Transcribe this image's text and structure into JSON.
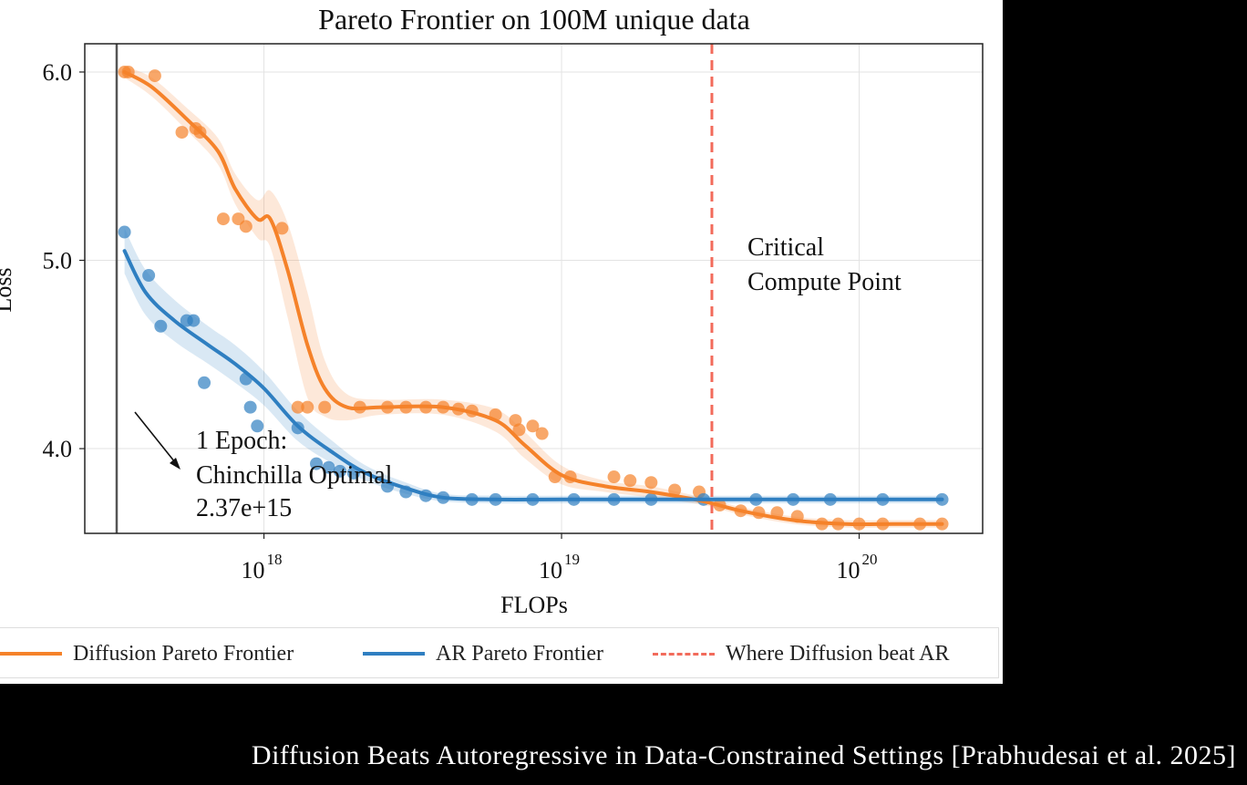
{
  "caption": "Diffusion Beats Autoregressive in Data-Constrained Settings [Prabhudesai et al. 2025]",
  "colors": {
    "diffusion": "#f5822a",
    "ar": "#2f7fc1",
    "critical": "#f26b5b",
    "epoch_line": "#555555"
  },
  "chart_data": {
    "type": "line",
    "title": "Pareto Frontier on 100M unique data",
    "xlabel": "FLOPs",
    "ylabel": "Loss",
    "xscale": "log",
    "xlim": [
      2.5e+17,
      2.6e+20
    ],
    "ylim": [
      3.55,
      6.15
    ],
    "x_ticks": [
      {
        "value": 1e+18,
        "base": "10",
        "exp": "18"
      },
      {
        "value": 1e+19,
        "base": "10",
        "exp": "19"
      },
      {
        "value": 1e+20,
        "base": "10",
        "exp": "20"
      }
    ],
    "y_ticks": [
      {
        "value": 6.0,
        "label": "6.0"
      },
      {
        "value": 5.0,
        "label": "5.0"
      },
      {
        "value": 4.0,
        "label": "4.0"
      }
    ],
    "grid": true,
    "series": [
      {
        "name": "Diffusion Pareto Frontier",
        "curve": {
          "x": [
            3.4e+17,
            4.2e+17,
            5.5e+17,
            7e+17,
            8e+17,
            9.5e+17,
            1.05e+18,
            1.2e+18,
            1.4e+18,
            1.6e+18,
            1.9e+18,
            2.5e+18,
            4e+18,
            6e+18,
            7.5e+18,
            1e+19,
            1.4e+19,
            2e+19,
            3e+19,
            4e+19,
            6e+19,
            9e+19,
            1.3e+20,
            1.9e+20
          ],
          "y": [
            6.0,
            5.92,
            5.75,
            5.58,
            5.38,
            5.22,
            5.22,
            4.95,
            4.55,
            4.32,
            4.22,
            4.22,
            4.22,
            4.15,
            4.02,
            3.86,
            3.8,
            3.77,
            3.72,
            3.67,
            3.62,
            3.6,
            3.6,
            3.6
          ],
          "band": [
            0.03,
            0.05,
            0.06,
            0.07,
            0.08,
            0.1,
            0.15,
            0.25,
            0.28,
            0.15,
            0.07,
            0.04,
            0.04,
            0.06,
            0.07,
            0.05,
            0.03,
            0.03,
            0.02,
            0.02,
            0.02,
            0.02,
            0.02,
            0.02
          ]
        },
        "points": {
          "x": [
            3.4e+17,
            3.5e+17,
            4.3e+17,
            5.3e+17,
            5.9e+17,
            6.1e+17,
            7.3e+17,
            8.2e+17,
            8.7e+17,
            1.15e+18,
            1.3e+18,
            1.4e+18,
            1.6e+18,
            2.1e+18,
            2.6e+18,
            3e+18,
            3.5e+18,
            4e+18,
            4.5e+18,
            5e+18,
            6e+18,
            7e+18,
            7.2e+18,
            8e+18,
            8.6e+18,
            9.5e+18,
            1.07e+19,
            1.5e+19,
            1.7e+19,
            2e+19,
            2.4e+19,
            2.9e+19,
            3.4e+19,
            4e+19,
            4.6e+19,
            5.3e+19,
            6.2e+19,
            7.5e+19,
            8.5e+19,
            1e+20,
            1.2e+20,
            1.6e+20,
            1.9e+20
          ],
          "y": [
            6.0,
            6.0,
            5.98,
            5.68,
            5.7,
            5.68,
            5.22,
            5.22,
            5.18,
            5.17,
            4.22,
            4.22,
            4.22,
            4.22,
            4.22,
            4.22,
            4.22,
            4.22,
            4.21,
            4.2,
            4.18,
            4.15,
            4.1,
            4.12,
            4.08,
            3.85,
            3.85,
            3.85,
            3.83,
            3.82,
            3.78,
            3.77,
            3.7,
            3.67,
            3.66,
            3.66,
            3.64,
            3.6,
            3.6,
            3.6,
            3.6,
            3.6,
            3.6
          ]
        }
      },
      {
        "name": "AR Pareto Frontier",
        "curve": {
          "x": [
            3.4e+17,
            4e+17,
            5e+17,
            6.5e+17,
            8e+17,
            1e+18,
            1.3e+18,
            1.7e+18,
            2.2e+18,
            3e+18,
            4e+18,
            6e+18,
            1e+19,
            3e+19,
            1e+20,
            1.9e+20
          ],
          "y": [
            5.05,
            4.83,
            4.68,
            4.55,
            4.45,
            4.32,
            4.12,
            3.98,
            3.87,
            3.79,
            3.74,
            3.73,
            3.73,
            3.73,
            3.73,
            3.73
          ],
          "band": [
            0.12,
            0.12,
            0.11,
            0.1,
            0.1,
            0.09,
            0.08,
            0.06,
            0.04,
            0.03,
            0.02,
            0.02,
            0.02,
            0.02,
            0.02,
            0.02
          ]
        },
        "points": {
          "x": [
            3.4e+17,
            4.1e+17,
            4.5e+17,
            5.5e+17,
            5.8e+17,
            6.3e+17,
            8.7e+17,
            9e+17,
            9.5e+17,
            1.3e+18,
            1.5e+18,
            1.65e+18,
            1.8e+18,
            2e+18,
            2.6e+18,
            3e+18,
            3.5e+18,
            4e+18,
            5e+18,
            6e+18,
            8e+18,
            1.1e+19,
            1.5e+19,
            2e+19,
            3e+19,
            4.5e+19,
            6e+19,
            8e+19,
            1.2e+20,
            1.9e+20
          ],
          "y": [
            5.15,
            4.92,
            4.65,
            4.68,
            4.68,
            4.35,
            4.37,
            4.22,
            4.12,
            4.11,
            3.92,
            3.9,
            3.88,
            3.87,
            3.8,
            3.77,
            3.75,
            3.74,
            3.73,
            3.73,
            3.73,
            3.73,
            3.73,
            3.73,
            3.73,
            3.73,
            3.73,
            3.73,
            3.73,
            3.73
          ]
        }
      }
    ],
    "reference_lines": [
      {
        "name": "1 Epoch",
        "orientation": "vertical",
        "x": 3.2e+17
      },
      {
        "name": "Where Diffusion beat AR",
        "orientation": "vertical",
        "x": 3.2e+19,
        "style": "dashed"
      }
    ],
    "annotations": {
      "critical": [
        "Critical",
        "Compute Point"
      ],
      "epoch": [
        "1 Epoch:",
        "Chinchilla Optimal",
        "2.37e+15"
      ]
    },
    "legend": {
      "position": "bottom",
      "entries": [
        {
          "label": "Diffusion Pareto Frontier"
        },
        {
          "label": "AR Pareto Frontier"
        },
        {
          "label": "Where Diffusion beat AR"
        }
      ]
    }
  }
}
